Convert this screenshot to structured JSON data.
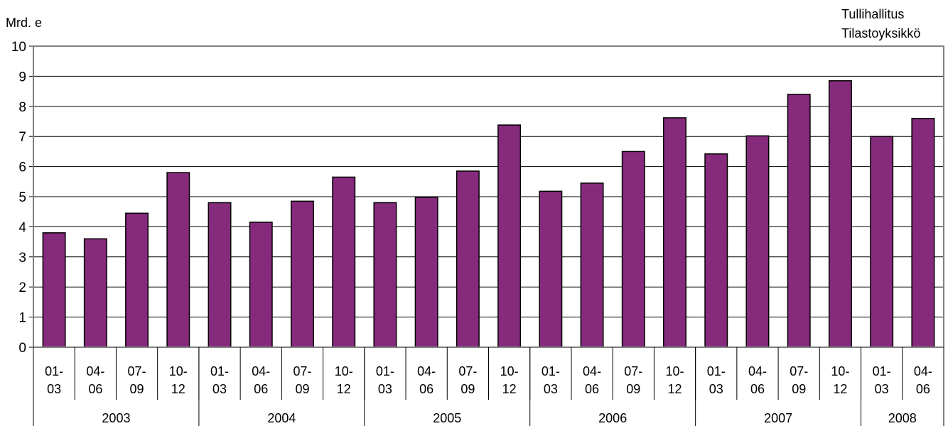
{
  "chart_data": {
    "type": "bar",
    "ylabel": "Mrd. e",
    "source_lines": [
      "Tullihallitus",
      "Tilastoyksikkö"
    ],
    "ylim": [
      0,
      10
    ],
    "yticks": [
      0,
      1,
      2,
      3,
      4,
      5,
      6,
      7,
      8,
      9,
      10
    ],
    "grid": true,
    "legend": "none",
    "bar_color": "#862a7c",
    "categories": [
      {
        "quarter": [
          "01-",
          "03"
        ],
        "year": "2003"
      },
      {
        "quarter": [
          "04-",
          "06"
        ],
        "year": "2003"
      },
      {
        "quarter": [
          "07-",
          "09"
        ],
        "year": "2003"
      },
      {
        "quarter": [
          "10-",
          "12"
        ],
        "year": "2003"
      },
      {
        "quarter": [
          "01-",
          "03"
        ],
        "year": "2004"
      },
      {
        "quarter": [
          "04-",
          "06"
        ],
        "year": "2004"
      },
      {
        "quarter": [
          "07-",
          "09"
        ],
        "year": "2004"
      },
      {
        "quarter": [
          "10-",
          "12"
        ],
        "year": "2004"
      },
      {
        "quarter": [
          "01-",
          "03"
        ],
        "year": "2005"
      },
      {
        "quarter": [
          "04-",
          "06"
        ],
        "year": "2005"
      },
      {
        "quarter": [
          "07-",
          "09"
        ],
        "year": "2005"
      },
      {
        "quarter": [
          "10-",
          "12"
        ],
        "year": "2005"
      },
      {
        "quarter": [
          "01-",
          "03"
        ],
        "year": "2006"
      },
      {
        "quarter": [
          "04-",
          "06"
        ],
        "year": "2006"
      },
      {
        "quarter": [
          "07-",
          "09"
        ],
        "year": "2006"
      },
      {
        "quarter": [
          "10-",
          "12"
        ],
        "year": "2006"
      },
      {
        "quarter": [
          "01-",
          "03"
        ],
        "year": "2007"
      },
      {
        "quarter": [
          "04-",
          "06"
        ],
        "year": "2007"
      },
      {
        "quarter": [
          "07-",
          "09"
        ],
        "year": "2007"
      },
      {
        "quarter": [
          "10-",
          "12"
        ],
        "year": "2007"
      },
      {
        "quarter": [
          "01-",
          "03"
        ],
        "year": "2008"
      },
      {
        "quarter": [
          "04-",
          "06"
        ],
        "year": "2008"
      }
    ],
    "years": [
      "2003",
      "2004",
      "2005",
      "2006",
      "2007",
      "2008"
    ],
    "values": [
      3.8,
      3.6,
      4.45,
      5.8,
      4.8,
      4.15,
      4.85,
      5.65,
      4.8,
      4.98,
      5.85,
      7.38,
      5.18,
      5.45,
      6.5,
      7.62,
      6.42,
      7.02,
      8.4,
      8.85,
      7.0,
      7.6
    ]
  }
}
